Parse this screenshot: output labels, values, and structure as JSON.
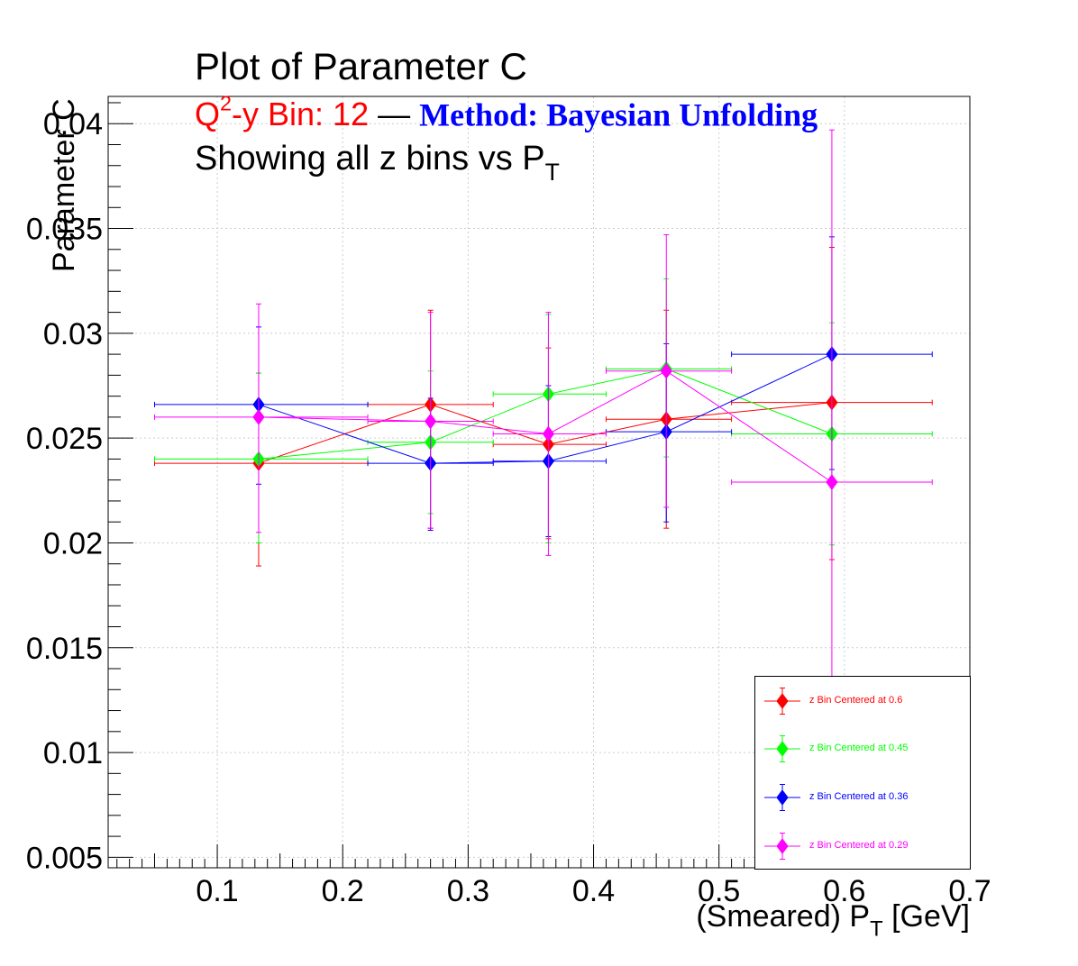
{
  "title": {
    "main": "Plot of Parameter C",
    "bin_prefix": "Q",
    "bin_sup": "2",
    "bin_rest": "-y Bin: 12",
    "dash": "—",
    "method": "Method: Bayesian Unfolding",
    "line3_prefix": "Showing all z bins vs P",
    "line3_sub": "T"
  },
  "axes": {
    "ylabel": "Parameter C",
    "xlabel_prefix": "(Smeared) P",
    "xlabel_sub": "T",
    "xlabel_suffix": " [GeV]",
    "x_ticks": [
      "0.1",
      "0.2",
      "0.3",
      "0.4",
      "0.5",
      "0.6",
      "0.7"
    ],
    "y_ticks": [
      "0.005",
      "0.01",
      "0.015",
      "0.02",
      "0.025",
      "0.03",
      "0.035",
      "0.04"
    ]
  },
  "legend": [
    {
      "label": "z Bin Centered at 0.6",
      "color": "#ff0000"
    },
    {
      "label": "z Bin Centered at 0.45",
      "color": "#00ff00"
    },
    {
      "label": "z Bin Centered at 0.36",
      "color": "#0000ff"
    },
    {
      "label": "z Bin Centered at 0.29",
      "color": "#ff00ff"
    }
  ],
  "chart_data": {
    "type": "scatter",
    "title": "Plot of Parameter C",
    "xlabel": "(Smeared) P_T [GeV]",
    "ylabel": "Parameter C",
    "xlim": [
      0.013,
      0.7
    ],
    "ylim": [
      0.0045,
      0.0413
    ],
    "grid": true,
    "legend_position": "bottom-right",
    "series": [
      {
        "name": "z Bin Centered at 0.6",
        "color": "#ff0000",
        "points": [
          {
            "x": 0.133,
            "y": 0.0238,
            "xerr_lo": 0.05,
            "xerr_hi": 0.22,
            "yerr_lo": 0.0189,
            "yerr_hi": 0.0281
          },
          {
            "x": 0.27,
            "y": 0.0266,
            "xerr_lo": 0.22,
            "xerr_hi": 0.32,
            "yerr_lo": 0.0207,
            "yerr_hi": 0.0311
          },
          {
            "x": 0.364,
            "y": 0.0247,
            "xerr_lo": 0.32,
            "xerr_hi": 0.41,
            "yerr_lo": 0.0202,
            "yerr_hi": 0.0293
          },
          {
            "x": 0.458,
            "y": 0.0259,
            "xerr_lo": 0.41,
            "xerr_hi": 0.51,
            "yerr_lo": 0.0207,
            "yerr_hi": 0.0311
          },
          {
            "x": 0.59,
            "y": 0.0267,
            "xerr_lo": 0.51,
            "xerr_hi": 0.67,
            "yerr_lo": 0.0192,
            "yerr_hi": 0.0341
          }
        ]
      },
      {
        "name": "z Bin Centered at 0.45",
        "color": "#00ff00",
        "points": [
          {
            "x": 0.133,
            "y": 0.024,
            "xerr_lo": 0.05,
            "xerr_hi": 0.22,
            "yerr_lo": 0.02,
            "yerr_hi": 0.0281
          },
          {
            "x": 0.27,
            "y": 0.0248,
            "xerr_lo": 0.22,
            "xerr_hi": 0.32,
            "yerr_lo": 0.0214,
            "yerr_hi": 0.0282
          },
          {
            "x": 0.364,
            "y": 0.0271,
            "xerr_lo": 0.32,
            "xerr_hi": 0.41,
            "yerr_lo": 0.02,
            "yerr_hi": 0.0309
          },
          {
            "x": 0.458,
            "y": 0.0283,
            "xerr_lo": 0.41,
            "xerr_hi": 0.51,
            "yerr_lo": 0.0241,
            "yerr_hi": 0.0326
          },
          {
            "x": 0.59,
            "y": 0.0252,
            "xerr_lo": 0.51,
            "xerr_hi": 0.67,
            "yerr_lo": 0.0199,
            "yerr_hi": 0.0305
          }
        ]
      },
      {
        "name": "z Bin Centered at 0.36",
        "color": "#0000ff",
        "points": [
          {
            "x": 0.133,
            "y": 0.0266,
            "xerr_lo": 0.05,
            "xerr_hi": 0.22,
            "yerr_lo": 0.0228,
            "yerr_hi": 0.0303
          },
          {
            "x": 0.27,
            "y": 0.0238,
            "xerr_lo": 0.22,
            "xerr_hi": 0.32,
            "yerr_lo": 0.0206,
            "yerr_hi": 0.0269
          },
          {
            "x": 0.364,
            "y": 0.0239,
            "xerr_lo": 0.32,
            "xerr_hi": 0.41,
            "yerr_lo": 0.0203,
            "yerr_hi": 0.0275
          },
          {
            "x": 0.458,
            "y": 0.0253,
            "xerr_lo": 0.41,
            "xerr_hi": 0.51,
            "yerr_lo": 0.021,
            "yerr_hi": 0.0295
          },
          {
            "x": 0.59,
            "y": 0.029,
            "xerr_lo": 0.51,
            "xerr_hi": 0.67,
            "yerr_lo": 0.0235,
            "yerr_hi": 0.0346
          }
        ]
      },
      {
        "name": "z Bin Centered at 0.29",
        "color": "#ff00ff",
        "points": [
          {
            "x": 0.133,
            "y": 0.026,
            "xerr_lo": 0.05,
            "xerr_hi": 0.22,
            "yerr_lo": 0.0205,
            "yerr_hi": 0.0314
          },
          {
            "x": 0.27,
            "y": 0.0258,
            "xerr_lo": 0.22,
            "xerr_hi": 0.32,
            "yerr_lo": 0.0207,
            "yerr_hi": 0.031
          },
          {
            "x": 0.364,
            "y": 0.0252,
            "xerr_lo": 0.32,
            "xerr_hi": 0.41,
            "yerr_lo": 0.0194,
            "yerr_hi": 0.031
          },
          {
            "x": 0.458,
            "y": 0.0282,
            "xerr_lo": 0.41,
            "xerr_hi": 0.51,
            "yerr_lo": 0.0217,
            "yerr_hi": 0.0347
          },
          {
            "x": 0.59,
            "y": 0.0229,
            "xerr_lo": 0.51,
            "xerr_hi": 0.67,
            "yerr_lo": 0.0062,
            "yerr_hi": 0.0397
          }
        ]
      }
    ]
  }
}
